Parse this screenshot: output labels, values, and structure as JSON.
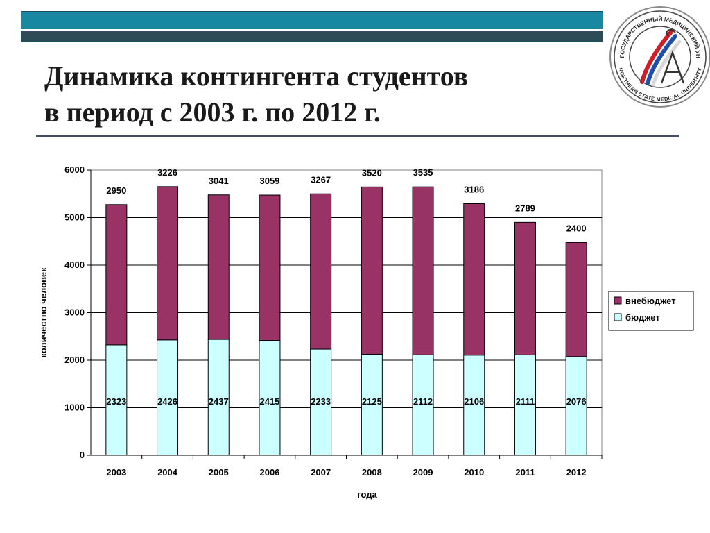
{
  "slide": {
    "title_line1": "Динамика контингента студентов",
    "title_line2": "в период с 2003 г. по 2012 г.",
    "logo_icon": "university-seal-icon",
    "logo_text_top": "СЕВЕРНЫЙ ГОСУДАРСТВЕННЫЙ МЕДИЦИНСКИЙ УНИВЕРСИТЕТ",
    "logo_text_bottom": "NORTHERN STATE MEDICAL UNIVERSITY"
  },
  "colors": {
    "band_teal": "#17889f",
    "band_dark": "#2e4b58",
    "series_budget": "#ccffff",
    "series_extrabudget": "#993366"
  },
  "chart_data": {
    "type": "bar",
    "stacked": true,
    "categories": [
      "2003",
      "2004",
      "2005",
      "2006",
      "2007",
      "2008",
      "2009",
      "2010",
      "2011",
      "2012"
    ],
    "series": [
      {
        "name": "бюджет",
        "values": [
          2323,
          2426,
          2437,
          2415,
          2233,
          2125,
          2112,
          2106,
          2111,
          2076
        ]
      },
      {
        "name": "внебюджет",
        "values": [
          2950,
          3226,
          3041,
          3059,
          3267,
          3520,
          3535,
          3186,
          2789,
          2400
        ]
      }
    ],
    "xlabel": "года",
    "ylabel": "количество человек",
    "ylim": [
      0,
      6000
    ],
    "yticks": [
      0,
      1000,
      2000,
      3000,
      4000,
      5000,
      6000
    ],
    "grid": true,
    "legend": {
      "position": "right",
      "entries": [
        "внебюджет",
        "бюджет"
      ]
    }
  }
}
